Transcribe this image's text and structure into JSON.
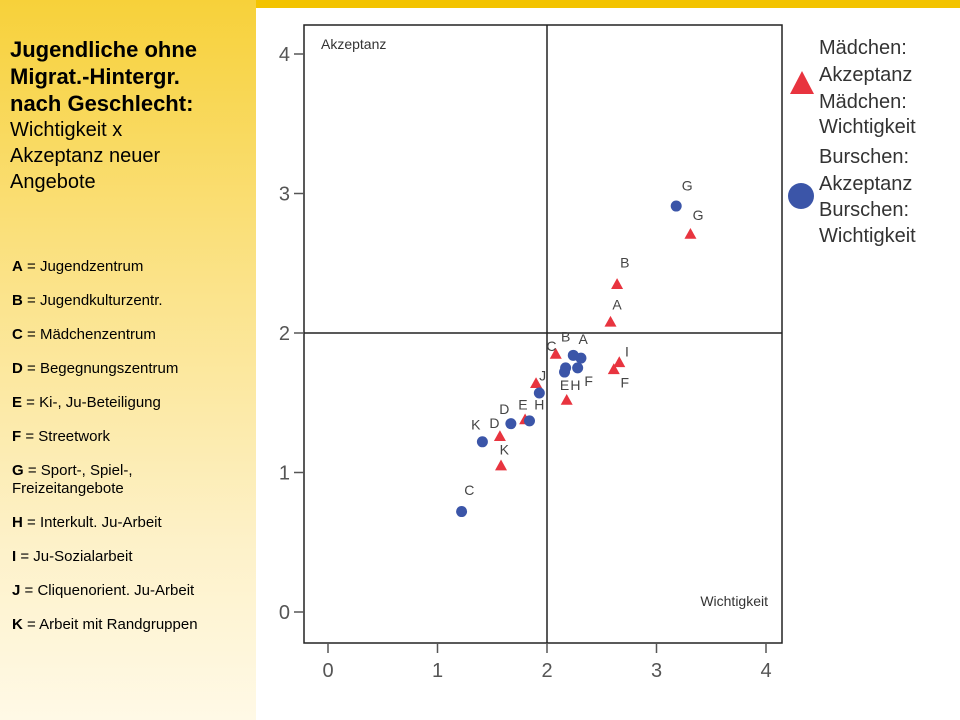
{
  "sidebar": {
    "title_line1": "Jugendliche ohne",
    "title_line2": "Migrat.-Hintergr.",
    "title_line3": "nach Geschlecht:",
    "subtitle_line1": "Wichtigkeit x",
    "subtitle_line2": "Akzeptanz neuer",
    "subtitle_line3": "Angebote",
    "items": [
      {
        "key": "A",
        "text": "Jugendzentrum"
      },
      {
        "key": "B",
        "text": "Jugendkulturzentr."
      },
      {
        "key": "C",
        "text": "Mädchenzentrum"
      },
      {
        "key": "D",
        "text": "Begegnungszentrum"
      },
      {
        "key": "E",
        "text": "Ki-, Ju-Beteiligung"
      },
      {
        "key": "F",
        "text": "Streetwork"
      },
      {
        "key": "G",
        "text": "Sport-, Spiel-, Freizeitangebote"
      },
      {
        "key": "H",
        "text": "Interkult. Ju-Arbeit"
      },
      {
        "key": "I",
        "text": "Ju-Sozialarbeit"
      },
      {
        "key": "J",
        "text": "Cliquenorient. Ju-Arbeit"
      },
      {
        "key": "K",
        "text": "Arbeit mit Randgruppen"
      }
    ]
  },
  "colors": {
    "maedchen": "#e8343f",
    "burschen": "#3b55a8",
    "accent_bar": "#f3c300"
  },
  "chart_data": {
    "type": "scatter",
    "xlim": [
      -0.2,
      4.2
    ],
    "ylim": [
      -0.2,
      4.2
    ],
    "xticks": [
      0,
      1,
      2,
      3,
      4
    ],
    "yticks": [
      0,
      1,
      2,
      3,
      4
    ],
    "reference_lines": {
      "x": 2,
      "y": 2
    },
    "quadrant_labels": {
      "top_left": "Akzeptanz",
      "bottom_right": "Wichtigkeit"
    },
    "legend": [
      {
        "marker": "triangle",
        "lines": [
          "Mädchen:",
          "Akzeptanz",
          "Mädchen:",
          "Wichtigkeit"
        ]
      },
      {
        "marker": "circle",
        "lines": [
          "Burschen:",
          "Akzeptanz",
          "Burschen:",
          "Wichtigkeit"
        ]
      }
    ],
    "series": [
      {
        "marker": "triangle",
        "color": "#e8343f",
        "points": [
          {
            "label": "A",
            "x": 2.58,
            "y": 2.08
          },
          {
            "label": "B",
            "x": 2.64,
            "y": 2.35
          },
          {
            "label": "C",
            "x": 2.08,
            "y": 1.85
          },
          {
            "label": "D",
            "x": 1.57,
            "y": 1.26
          },
          {
            "label": "E",
            "x": 1.8,
            "y": 1.38
          },
          {
            "label": "F",
            "x": 2.61,
            "y": 1.74
          },
          {
            "label": "G",
            "x": 3.31,
            "y": 2.71
          },
          {
            "label": "H",
            "x": 2.18,
            "y": 1.52
          },
          {
            "label": "I",
            "x": 2.66,
            "y": 1.79
          },
          {
            "label": "J",
            "x": 1.9,
            "y": 1.64
          },
          {
            "label": "K",
            "x": 1.58,
            "y": 1.05
          }
        ]
      },
      {
        "marker": "circle",
        "color": "#3b55a8",
        "points": [
          {
            "label": "A",
            "x": 2.31,
            "y": 1.82
          },
          {
            "label": "B",
            "x": 2.24,
            "y": 1.84
          },
          {
            "label": "C",
            "x": 1.22,
            "y": 0.72
          },
          {
            "label": "D",
            "x": 1.67,
            "y": 1.35
          },
          {
            "label": "E",
            "x": 2.16,
            "y": 1.72
          },
          {
            "label": "F",
            "x": 2.28,
            "y": 1.75
          },
          {
            "label": "G",
            "x": 3.18,
            "y": 2.91
          },
          {
            "label": "H",
            "x": 1.84,
            "y": 1.37
          },
          {
            "label": "I",
            "x": 2.17,
            "y": 1.75
          },
          {
            "label": "J",
            "x": 1.93,
            "y": 1.57
          },
          {
            "label": "K",
            "x": 1.41,
            "y": 1.22
          }
        ]
      }
    ],
    "point_labels": [
      {
        "text": "G",
        "x": 3.28,
        "y": 3.02
      },
      {
        "text": "G",
        "x": 3.38,
        "y": 2.81
      },
      {
        "text": "B",
        "x": 2.71,
        "y": 2.47
      },
      {
        "text": "A",
        "x": 2.64,
        "y": 2.17
      },
      {
        "text": "B",
        "x": 2.17,
        "y": 1.94
      },
      {
        "text": "A",
        "x": 2.33,
        "y": 1.92
      },
      {
        "text": "C",
        "x": 2.04,
        "y": 1.87
      },
      {
        "text": "I",
        "x": 2.73,
        "y": 1.83
      },
      {
        "text": "J",
        "x": 1.96,
        "y": 1.66
      },
      {
        "text": "E",
        "x": 2.16,
        "y": 1.59
      },
      {
        "text": "H",
        "x": 2.26,
        "y": 1.59
      },
      {
        "text": "F",
        "x": 2.38,
        "y": 1.62
      },
      {
        "text": "F",
        "x": 2.71,
        "y": 1.61
      },
      {
        "text": "E",
        "x": 1.78,
        "y": 1.45
      },
      {
        "text": "H",
        "x": 1.93,
        "y": 1.45
      },
      {
        "text": "D",
        "x": 1.61,
        "y": 1.42
      },
      {
        "text": "D",
        "x": 1.52,
        "y": 1.32
      },
      {
        "text": "K",
        "x": 1.35,
        "y": 1.31
      },
      {
        "text": "K",
        "x": 1.61,
        "y": 1.13
      },
      {
        "text": "C",
        "x": 1.29,
        "y": 0.84
      }
    ]
  }
}
